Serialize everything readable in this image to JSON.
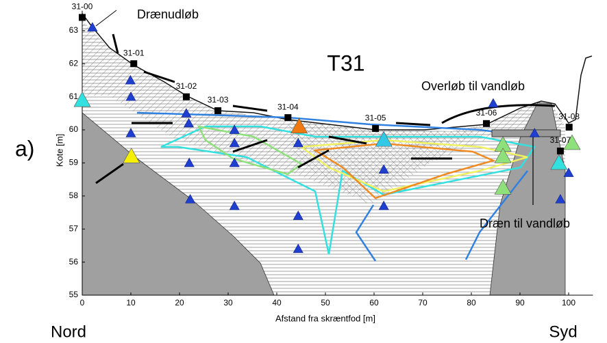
{
  "chart_data": {
    "type": "scatter",
    "title": "T31",
    "panel_label": "a)",
    "xlabel": "Afstand fra skræntfod [m]",
    "ylabel": "Kote [m]",
    "left_label": "Nord",
    "right_label": "Syd",
    "annotations": [
      "Drænudløb",
      "Overløb til vandløb",
      "Dræn til vandløb"
    ],
    "xlim": [
      0,
      105
    ],
    "ylim": [
      55,
      63.6
    ],
    "xticks": [
      0,
      10,
      20,
      30,
      40,
      50,
      60,
      70,
      80,
      90,
      100
    ],
    "yticks": [
      55,
      56,
      57,
      58,
      59,
      60,
      61,
      62,
      63
    ],
    "stations": {
      "color": "#000000",
      "labels": [
        "31-00",
        "31-01",
        "31-02",
        "31-03",
        "31-04",
        "31-05",
        "31-06",
        "31-07",
        "31-08"
      ],
      "x": [
        0,
        10.6,
        21.4,
        27.9,
        42.3,
        60.3,
        83.1,
        98.3,
        100.1
      ],
      "y": [
        63.4,
        62.0,
        61.0,
        60.58,
        60.37,
        60.04,
        60.19,
        59.36,
        60.08
      ]
    },
    "piezometers": {
      "color": "#1f3fd0",
      "x": [
        2.1,
        9.9,
        10,
        10,
        21.4,
        21.9,
        22,
        22.2,
        31.3,
        31.3,
        31.3,
        31.3,
        44.4,
        44.4,
        44.4,
        62,
        62,
        84.5,
        93,
        98.3,
        100
      ],
      "y": [
        63.1,
        61.5,
        61.0,
        59.9,
        60.5,
        60.2,
        59.0,
        57.9,
        60.0,
        59.6,
        59.0,
        57.7,
        57.4,
        56.4,
        59.6,
        58.8,
        57.7,
        60.8,
        59.9,
        57.9,
        58.7
      ]
    },
    "highlighted": {
      "colors": [
        "#33e0e0",
        "#f5f000",
        "#f07a10",
        "#33c8e8",
        "#8ee07a",
        "#8ee07a",
        "#8ee07a",
        "#33e0e0",
        "#8ee07a"
      ],
      "x": [
        0,
        10.1,
        44.6,
        62,
        86.5,
        86.5,
        86.5,
        98,
        100.7
      ],
      "y": [
        60.9,
        59.2,
        60.1,
        59.7,
        59.55,
        59.2,
        58.25,
        59.0,
        59.6
      ]
    }
  }
}
